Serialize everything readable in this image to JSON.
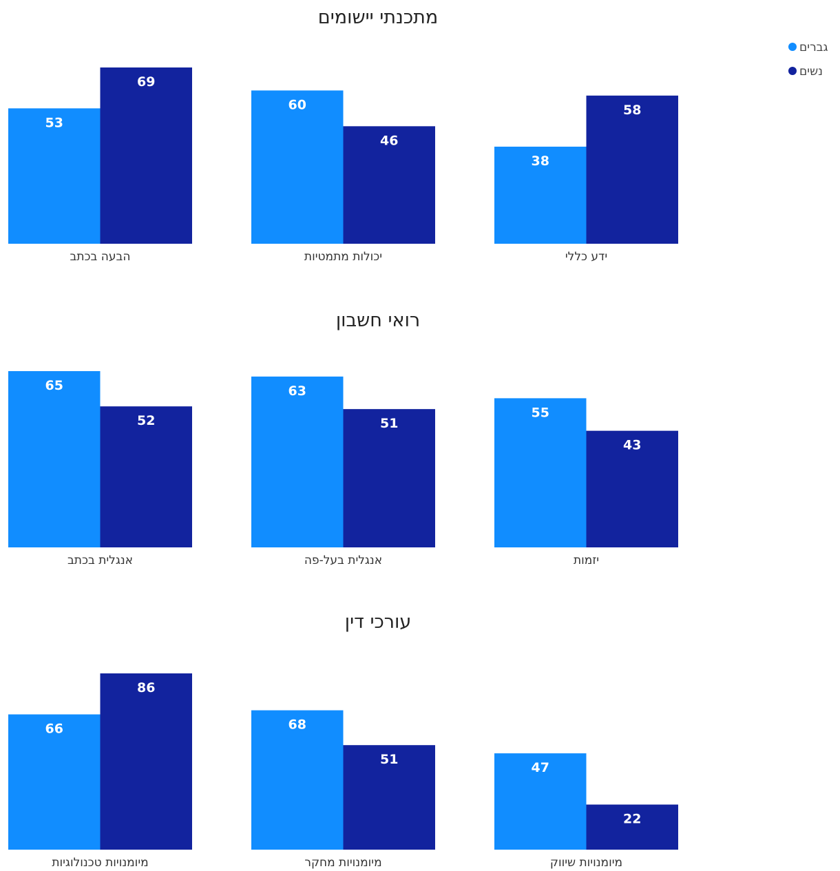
{
  "legend": {
    "placement": "top-right",
    "items": [
      {
        "name": "גברים",
        "color": "#118DFF"
      },
      {
        "name": "נשים",
        "color": "#12239E"
      }
    ]
  },
  "chart_data": [
    {
      "type": "bar",
      "title": "מתכנתי יישומים",
      "categories": [
        "הבעה בכתב",
        "יכולות מתמטיות",
        "ידע כללי"
      ],
      "series": [
        {
          "name": "גברים",
          "values": [
            53,
            60,
            38
          ]
        },
        {
          "name": "נשים",
          "values": [
            69,
            46,
            58
          ]
        }
      ],
      "ylim": [
        0,
        69
      ],
      "grid": false
    },
    {
      "type": "bar",
      "title": "רואי חשבון",
      "categories": [
        "אנגלית בכתב",
        "אנגלית בעל-פה",
        "יזמות"
      ],
      "series": [
        {
          "name": "גברים",
          "values": [
            65,
            63,
            55
          ]
        },
        {
          "name": "נשים",
          "values": [
            52,
            51,
            43
          ]
        }
      ],
      "ylim": [
        0,
        65
      ],
      "grid": false
    },
    {
      "type": "bar",
      "title": "עורכי דין",
      "categories": [
        "מיומנויות טכנולוגיות",
        "מיומנויות מחקר",
        "מיומנויות שיווק"
      ],
      "series": [
        {
          "name": "גברים",
          "values": [
            66,
            68,
            47
          ]
        },
        {
          "name": "נשים",
          "values": [
            86,
            51,
            22
          ]
        }
      ],
      "ylim": [
        0,
        86
      ],
      "grid": false
    }
  ]
}
